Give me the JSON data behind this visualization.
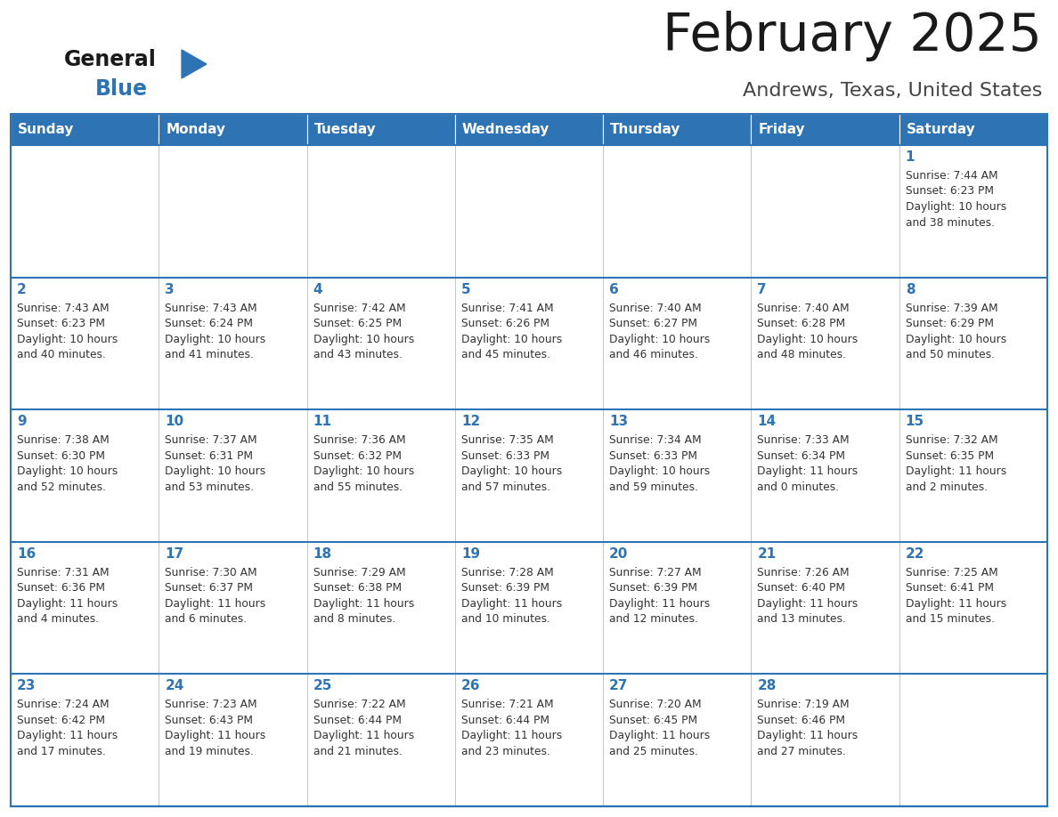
{
  "title": "February 2025",
  "subtitle": "Andrews, Texas, United States",
  "header_bg": "#2E74B5",
  "header_text_color": "#FFFFFF",
  "cell_bg": "#FFFFFF",
  "day_headers": [
    "Sunday",
    "Monday",
    "Tuesday",
    "Wednesday",
    "Thursday",
    "Friday",
    "Saturday"
  ],
  "title_color": "#1a1a1a",
  "subtitle_color": "#444444",
  "day_num_color": "#2E74B5",
  "info_color": "#333333",
  "border_color": "#2E74B5",
  "grid_line_color": "#BBBBBB",
  "logo_general_color": "#1a1a1a",
  "logo_blue_color": "#2E74B5",
  "calendar_data": [
    [
      null,
      null,
      null,
      null,
      null,
      null,
      {
        "day": 1,
        "sunrise": "7:44 AM",
        "sunset": "6:23 PM",
        "daylight_h": "10 hours",
        "daylight_m": "and 38 minutes."
      }
    ],
    [
      {
        "day": 2,
        "sunrise": "7:43 AM",
        "sunset": "6:23 PM",
        "daylight_h": "10 hours",
        "daylight_m": "and 40 minutes."
      },
      {
        "day": 3,
        "sunrise": "7:43 AM",
        "sunset": "6:24 PM",
        "daylight_h": "10 hours",
        "daylight_m": "and 41 minutes."
      },
      {
        "day": 4,
        "sunrise": "7:42 AM",
        "sunset": "6:25 PM",
        "daylight_h": "10 hours",
        "daylight_m": "and 43 minutes."
      },
      {
        "day": 5,
        "sunrise": "7:41 AM",
        "sunset": "6:26 PM",
        "daylight_h": "10 hours",
        "daylight_m": "and 45 minutes."
      },
      {
        "day": 6,
        "sunrise": "7:40 AM",
        "sunset": "6:27 PM",
        "daylight_h": "10 hours",
        "daylight_m": "and 46 minutes."
      },
      {
        "day": 7,
        "sunrise": "7:40 AM",
        "sunset": "6:28 PM",
        "daylight_h": "10 hours",
        "daylight_m": "and 48 minutes."
      },
      {
        "day": 8,
        "sunrise": "7:39 AM",
        "sunset": "6:29 PM",
        "daylight_h": "10 hours",
        "daylight_m": "and 50 minutes."
      }
    ],
    [
      {
        "day": 9,
        "sunrise": "7:38 AM",
        "sunset": "6:30 PM",
        "daylight_h": "10 hours",
        "daylight_m": "and 52 minutes."
      },
      {
        "day": 10,
        "sunrise": "7:37 AM",
        "sunset": "6:31 PM",
        "daylight_h": "10 hours",
        "daylight_m": "and 53 minutes."
      },
      {
        "day": 11,
        "sunrise": "7:36 AM",
        "sunset": "6:32 PM",
        "daylight_h": "10 hours",
        "daylight_m": "and 55 minutes."
      },
      {
        "day": 12,
        "sunrise": "7:35 AM",
        "sunset": "6:33 PM",
        "daylight_h": "10 hours",
        "daylight_m": "and 57 minutes."
      },
      {
        "day": 13,
        "sunrise": "7:34 AM",
        "sunset": "6:33 PM",
        "daylight_h": "10 hours",
        "daylight_m": "and 59 minutes."
      },
      {
        "day": 14,
        "sunrise": "7:33 AM",
        "sunset": "6:34 PM",
        "daylight_h": "11 hours",
        "daylight_m": "and 0 minutes."
      },
      {
        "day": 15,
        "sunrise": "7:32 AM",
        "sunset": "6:35 PM",
        "daylight_h": "11 hours",
        "daylight_m": "and 2 minutes."
      }
    ],
    [
      {
        "day": 16,
        "sunrise": "7:31 AM",
        "sunset": "6:36 PM",
        "daylight_h": "11 hours",
        "daylight_m": "and 4 minutes."
      },
      {
        "day": 17,
        "sunrise": "7:30 AM",
        "sunset": "6:37 PM",
        "daylight_h": "11 hours",
        "daylight_m": "and 6 minutes."
      },
      {
        "day": 18,
        "sunrise": "7:29 AM",
        "sunset": "6:38 PM",
        "daylight_h": "11 hours",
        "daylight_m": "and 8 minutes."
      },
      {
        "day": 19,
        "sunrise": "7:28 AM",
        "sunset": "6:39 PM",
        "daylight_h": "11 hours",
        "daylight_m": "and 10 minutes."
      },
      {
        "day": 20,
        "sunrise": "7:27 AM",
        "sunset": "6:39 PM",
        "daylight_h": "11 hours",
        "daylight_m": "and 12 minutes."
      },
      {
        "day": 21,
        "sunrise": "7:26 AM",
        "sunset": "6:40 PM",
        "daylight_h": "11 hours",
        "daylight_m": "and 13 minutes."
      },
      {
        "day": 22,
        "sunrise": "7:25 AM",
        "sunset": "6:41 PM",
        "daylight_h": "11 hours",
        "daylight_m": "and 15 minutes."
      }
    ],
    [
      {
        "day": 23,
        "sunrise": "7:24 AM",
        "sunset": "6:42 PM",
        "daylight_h": "11 hours",
        "daylight_m": "and 17 minutes."
      },
      {
        "day": 24,
        "sunrise": "7:23 AM",
        "sunset": "6:43 PM",
        "daylight_h": "11 hours",
        "daylight_m": "and 19 minutes."
      },
      {
        "day": 25,
        "sunrise": "7:22 AM",
        "sunset": "6:44 PM",
        "daylight_h": "11 hours",
        "daylight_m": "and 21 minutes."
      },
      {
        "day": 26,
        "sunrise": "7:21 AM",
        "sunset": "6:44 PM",
        "daylight_h": "11 hours",
        "daylight_m": "and 23 minutes."
      },
      {
        "day": 27,
        "sunrise": "7:20 AM",
        "sunset": "6:45 PM",
        "daylight_h": "11 hours",
        "daylight_m": "and 25 minutes."
      },
      {
        "day": 28,
        "sunrise": "7:19 AM",
        "sunset": "6:46 PM",
        "daylight_h": "11 hours",
        "daylight_m": "and 27 minutes."
      },
      null
    ]
  ],
  "figsize": [
    11.88,
    9.18
  ],
  "dpi": 100
}
